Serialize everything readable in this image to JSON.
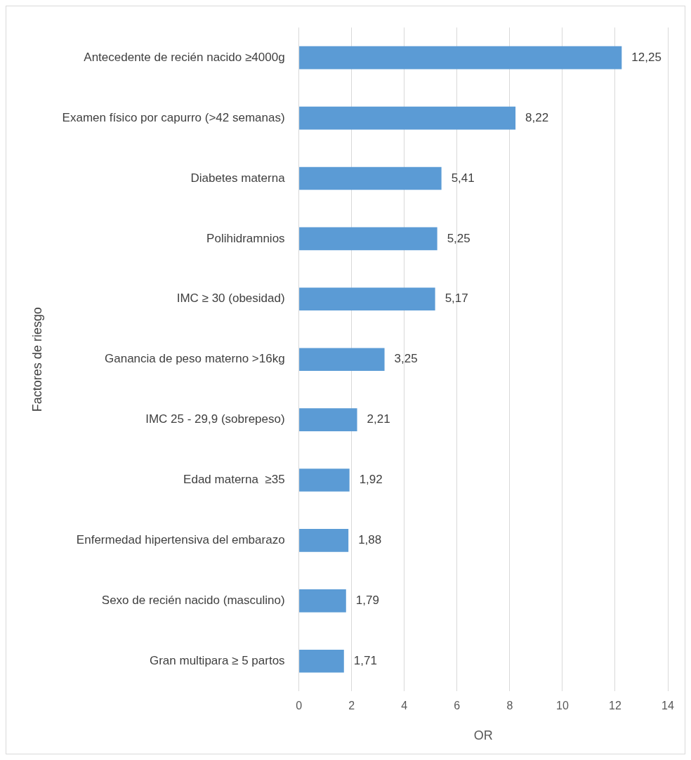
{
  "chart_data": {
    "type": "bar",
    "orientation": "horizontal",
    "xlabel": "OR",
    "ylabel": "Factores de riesgo",
    "categories": [
      "Antecedente de recién nacido ≥4000g",
      "Examen físico por capurro (>42 semanas)",
      "Diabetes materna",
      "Polihidramnios",
      "IMC ≥ 30 (obesidad)",
      "Ganancia de peso materno >16kg",
      "IMC 25 - 29,9 (sobrepeso)",
      "Edad materna  ≥35",
      "Enfermedad hipertensiva del embarazo",
      "Sexo de recién nacido (masculino)",
      "Gran multipara ≥ 5 partos"
    ],
    "values": [
      12.25,
      8.22,
      5.41,
      5.25,
      5.17,
      3.25,
      2.21,
      1.92,
      1.88,
      1.79,
      1.71
    ],
    "value_labels": [
      "12,25",
      "8,22",
      "5,41",
      "5,25",
      "5,17",
      "3,25",
      "2,21",
      "1,92",
      "1,88",
      "1,79",
      "1,71"
    ],
    "color": "#5b9bd5",
    "xlim": [
      0,
      14
    ],
    "xticks": [
      0,
      2,
      4,
      6,
      8,
      10,
      12,
      14
    ],
    "grid": "x",
    "legend": false
  }
}
